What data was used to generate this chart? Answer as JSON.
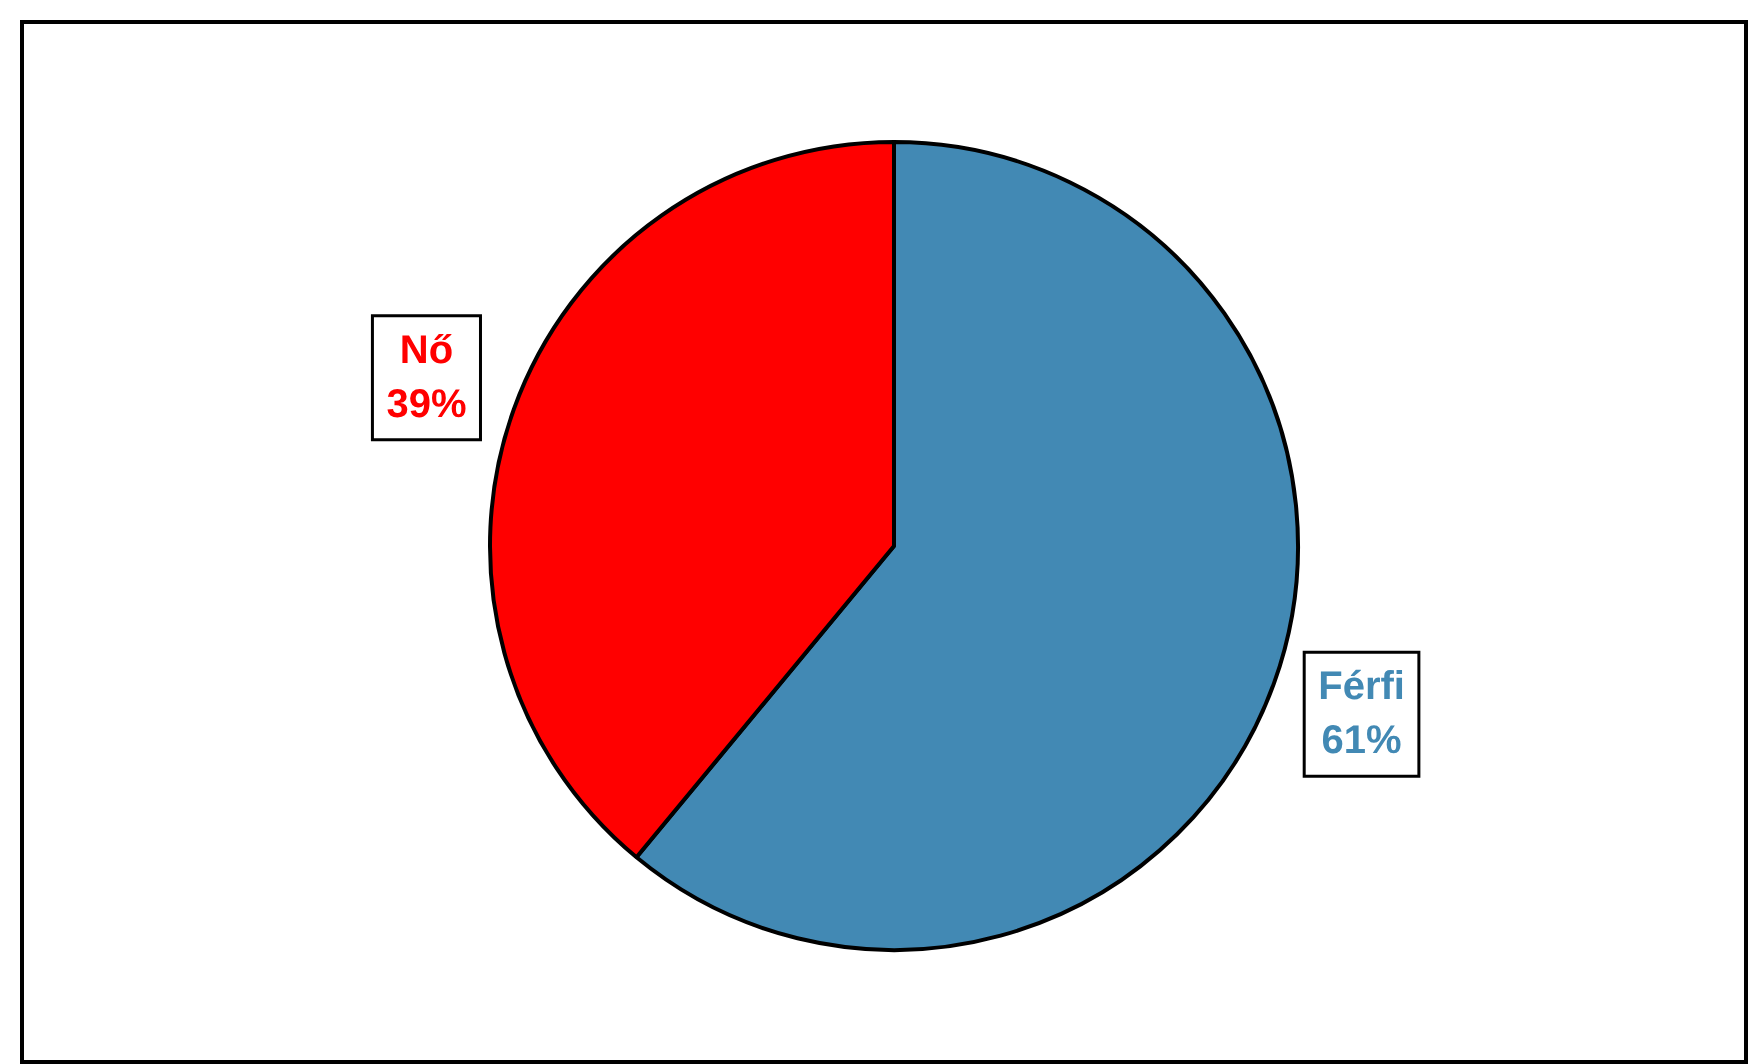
{
  "chart_data": {
    "type": "pie",
    "categories": [
      "Férfi",
      "Nő"
    ],
    "values": [
      61,
      39
    ],
    "colors": [
      "#4289b4",
      "#ff0000"
    ],
    "value_labels": [
      "61%",
      "39%"
    ],
    "legend": false
  }
}
